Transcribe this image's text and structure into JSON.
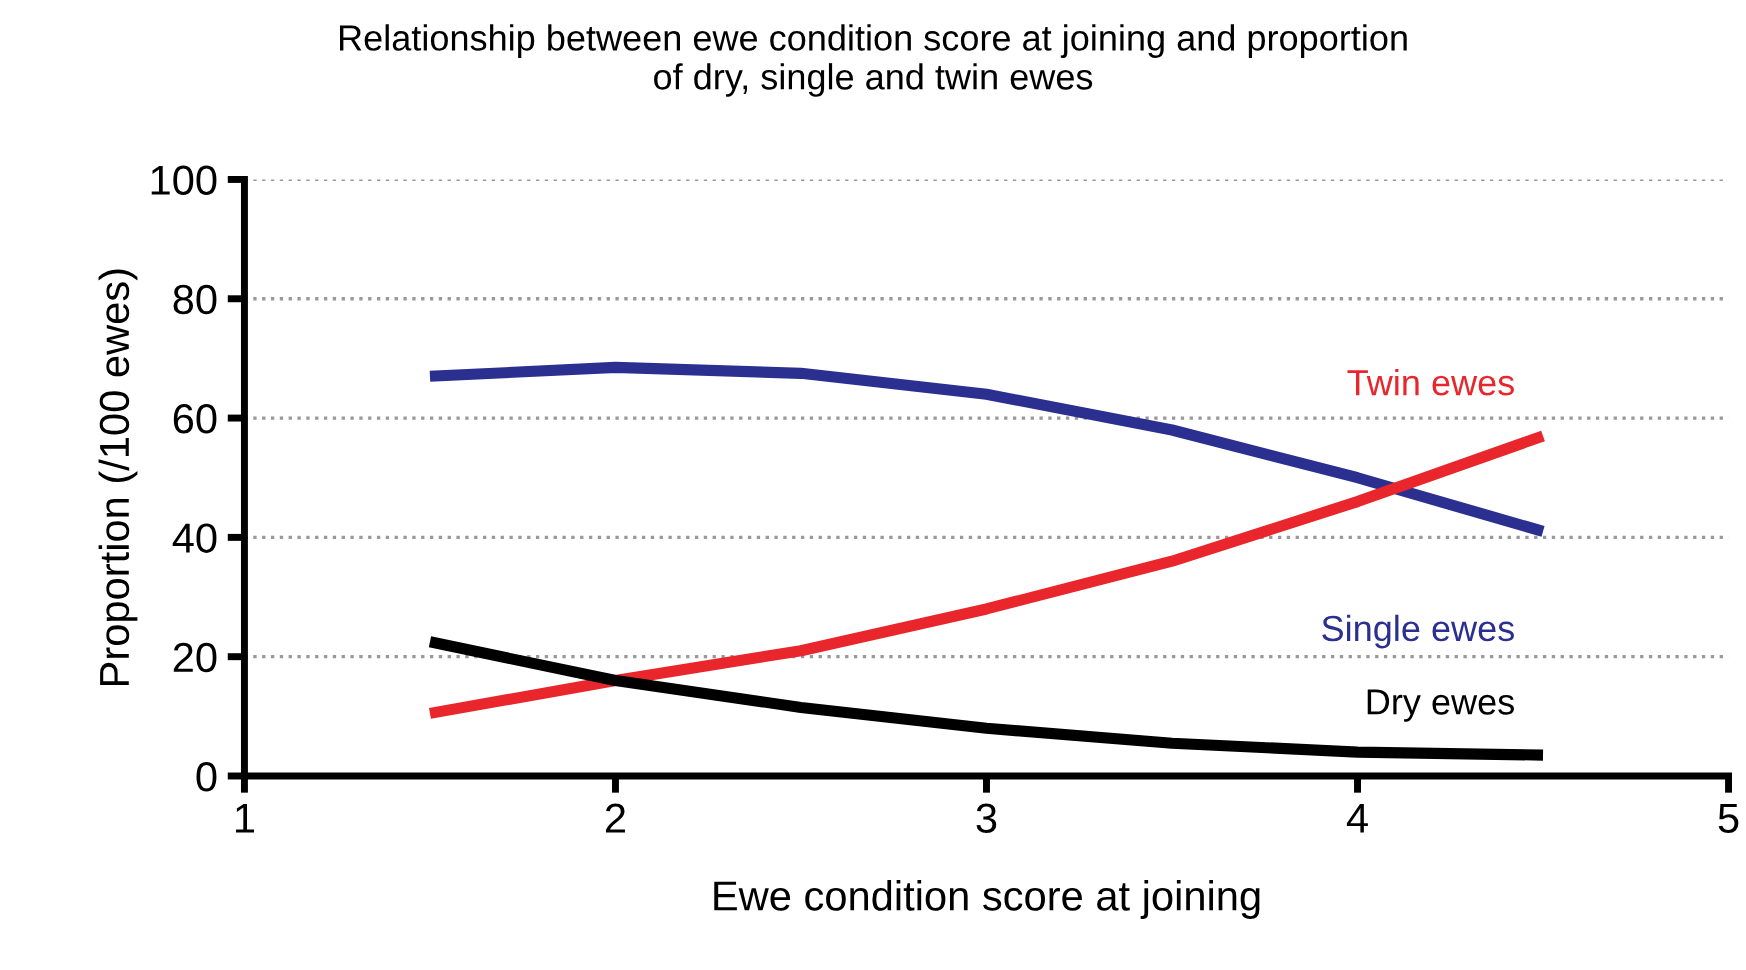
{
  "chart_data": {
    "type": "line",
    "title": "Relationship between ewe condition score at joining and proportion\nof dry, single and twin ewes",
    "xlabel": "Ewe condition score at joining",
    "ylabel": "Proportion (/100 ewes)",
    "x": [
      1.5,
      2,
      2.5,
      3,
      3.5,
      4,
      4.5
    ],
    "series": [
      {
        "name": "Single ewes",
        "color": "#2b2f8f",
        "values": [
          67,
          68.5,
          67.5,
          64,
          58,
          50,
          41
        ]
      },
      {
        "name": "Twin ewes",
        "color": "#e8262b",
        "values": [
          10.5,
          16,
          21,
          28,
          36,
          46,
          57
        ]
      },
      {
        "name": "Dry ewes",
        "color": "#000000",
        "values": [
          22.5,
          16,
          11.5,
          8,
          5.5,
          4,
          3.5
        ]
      }
    ],
    "xlim": [
      1,
      5
    ],
    "xticks": [
      1,
      2,
      3,
      4,
      5
    ],
    "ylim": [
      0,
      100
    ],
    "yticks": [
      0,
      20,
      40,
      60,
      80,
      100
    ],
    "grid": "y",
    "legend": false,
    "marker": "none",
    "line_style": "solid"
  }
}
